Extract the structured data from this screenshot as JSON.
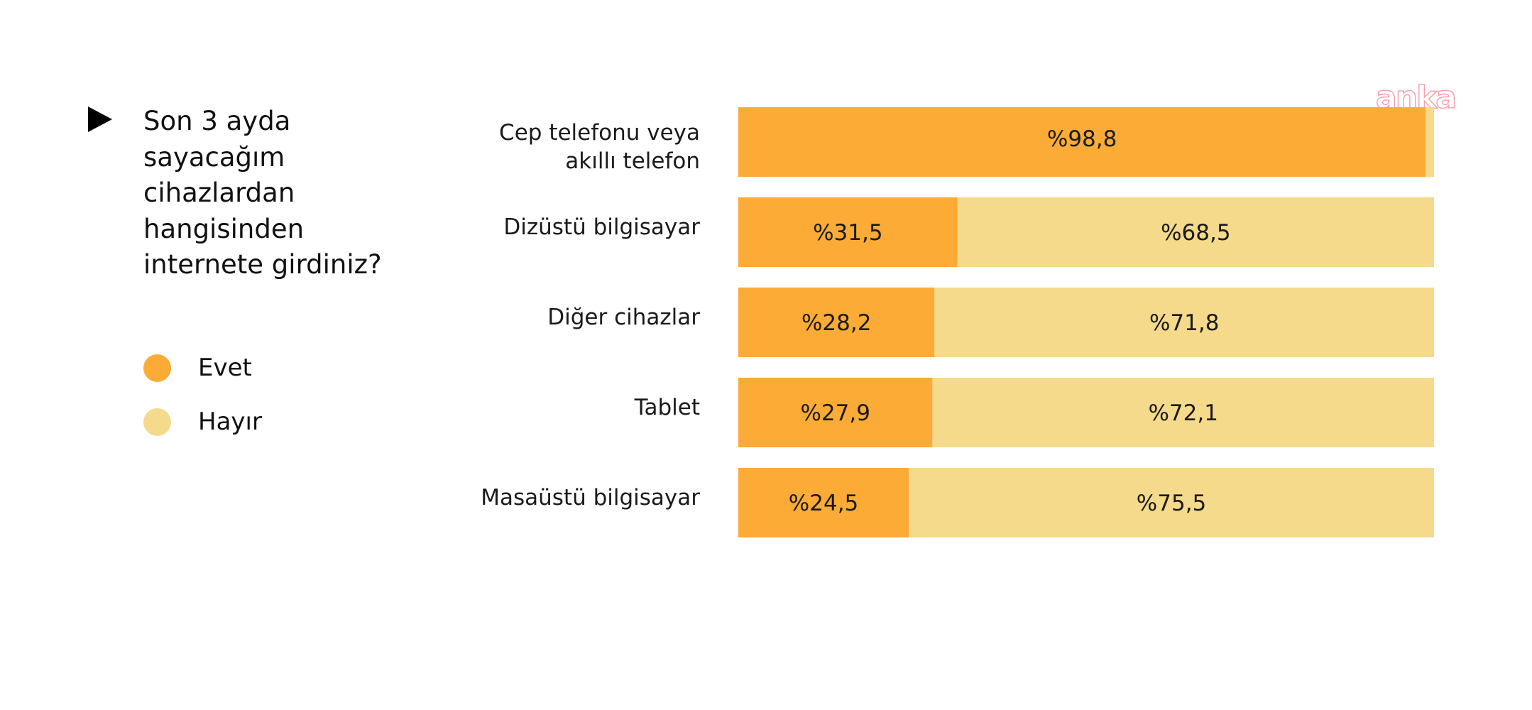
{
  "question": {
    "text": "Son 3 ayda sayacağım cihazlardan hangisinden internete girdiniz?"
  },
  "watermark": "anka",
  "colors": {
    "evet": "#fbab36",
    "hayir": "#f5da8c",
    "watermark": "#f4a3ad"
  },
  "legend": [
    {
      "label": "Evet"
    },
    {
      "label": "Hayır"
    }
  ],
  "chart_data": {
    "type": "bar",
    "orientation": "horizontal",
    "stacked": true,
    "percent": true,
    "categories": [
      [
        "Cep telefonu veya",
        "akıllı telefon"
      ],
      [
        "Dizüstü bilgisayar"
      ],
      [
        "Diğer cihazlar"
      ],
      [
        "Tablet"
      ],
      [
        "Masaüstü bilgisayar"
      ]
    ],
    "series": [
      {
        "name": "Evet",
        "values": [
          98.8,
          31.5,
          28.2,
          27.9,
          24.5
        ],
        "labels": [
          "%98,8",
          "%31,5",
          "%28,2",
          "%27,9",
          "%24,5"
        ]
      },
      {
        "name": "Hayır",
        "values": [
          1.2,
          68.5,
          71.8,
          72.1,
          75.5
        ],
        "labels": [
          "",
          "%68,5",
          "%71,8",
          "%72,1",
          "%75,5"
        ]
      }
    ],
    "xlim": [
      0,
      100
    ],
    "grid": false,
    "legend_position": "left"
  }
}
